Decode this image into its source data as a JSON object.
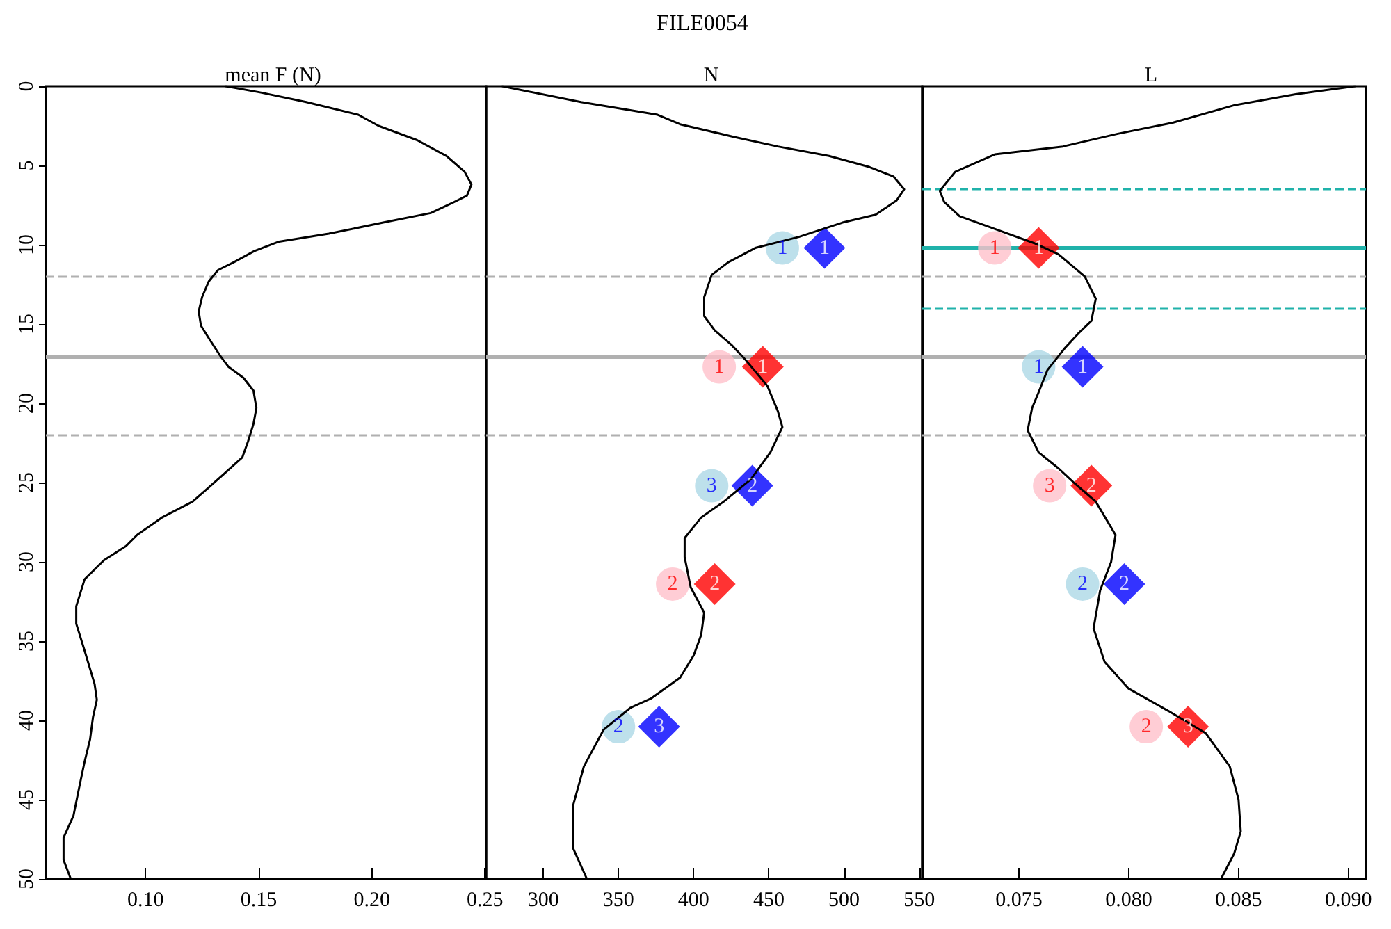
{
  "chart_data": [
    {
      "type": "line",
      "subtitle": "mean F (N)",
      "xlim": [
        0.056,
        0.2505
      ],
      "xticks": [
        {
          "value": 0.1,
          "label": "0.10"
        },
        0.15,
        {
          "value": 0.2,
          "label": "0.20"
        },
        0.25
      ],
      "ylim": [
        50,
        0
      ],
      "yticks": [
        0,
        5,
        10,
        15,
        20,
        25,
        30,
        35,
        40,
        45,
        50
      ],
      "grid": false,
      "ref_lines": [
        {
          "axis": "y",
          "value": 12,
          "color": "#b0b0b0",
          "line_style": "dashed"
        },
        {
          "axis": "y",
          "value": 17,
          "color": "#b0b0b0",
          "line_style": "solid"
        },
        {
          "axis": "y",
          "value": 22,
          "color": "#b0b0b0",
          "line_style": "dashed"
        }
      ],
      "series": [
        {
          "color": "#000000",
          "marker": "none",
          "x": [
            0.1355,
            0.151,
            0.171,
            0.194,
            0.203,
            0.22,
            0.233,
            0.241,
            0.244,
            0.242,
            0.235,
            0.226,
            0.205,
            0.181,
            0.159,
            0.148,
            0.139,
            0.132,
            0.128,
            0.125,
            0.1235,
            0.1245,
            0.128,
            0.133,
            0.1367,
            0.1433,
            0.1477,
            0.149,
            0.1477,
            0.1453,
            0.1428,
            0.1343,
            0.128,
            0.1208,
            0.1073,
            0.0963,
            0.0914,
            0.0816,
            0.0731,
            0.0694,
            0.0694,
            0.0731,
            0.0775,
            0.0785,
            0.0768,
            0.0755,
            0.0731,
            0.0706,
            0.0682,
            0.0638,
            0.0638,
            0.067
          ],
          "values": [
            0,
            0.4,
            1.0,
            1.8,
            2.5,
            3.4,
            4.4,
            5.4,
            6.2,
            6.9,
            7.4,
            8.0,
            8.6,
            9.3,
            9.8,
            10.4,
            11.1,
            11.6,
            12.3,
            13.3,
            14.2,
            15.1,
            15.9,
            17.0,
            17.7,
            18.4,
            19.2,
            20.3,
            21.3,
            22.4,
            23.4,
            24.5,
            25.3,
            26.2,
            27.2,
            28.3,
            29.0,
            29.9,
            31.1,
            32.8,
            33.9,
            35.6,
            37.7,
            38.7,
            39.8,
            41.2,
            42.6,
            44.3,
            46.0,
            47.4,
            48.8,
            50
          ]
        }
      ]
    },
    {
      "type": "line",
      "title": "FILE0054",
      "subtitle": "N",
      "xlim": [
        262,
        552
      ],
      "xticks": [
        300,
        350,
        400,
        450,
        500,
        550
      ],
      "ylim": [
        50,
        0
      ],
      "yticks": [
        0,
        5,
        10,
        15,
        20,
        25,
        30,
        35,
        40,
        45,
        50
      ],
      "tick_labels": "x",
      "grid": false,
      "ref_lines": [
        {
          "axis": "y",
          "value": 12,
          "color": "#b0b0b0",
          "line_style": "dashed"
        },
        {
          "axis": "y",
          "value": 17,
          "color": "#b0b0b0",
          "line_style": "solid"
        },
        {
          "axis": "y",
          "value": 22,
          "color": "#b0b0b0",
          "line_style": "dashed"
        }
      ],
      "series": [
        {
          "color": "#000000",
          "marker": "none",
          "x": [
            272.8,
            325,
            376,
            391,
            427,
            456,
            490,
            517,
            533,
            540,
            535,
            521,
            499,
            470,
            441,
            423,
            412,
            407,
            407,
            414,
            425,
            434,
            449,
            456,
            459,
            451,
            438,
            420,
            405,
            394,
            394,
            398,
            407,
            405,
            400,
            391,
            372,
            358,
            340,
            327,
            320,
            320,
            329
          ],
          "values": [
            0,
            1.0,
            1.8,
            2.4,
            3.2,
            3.8,
            4.4,
            5.1,
            5.7,
            6.5,
            7.2,
            8.1,
            8.6,
            9.5,
            10.2,
            11.1,
            11.9,
            13.3,
            14.5,
            15.4,
            16.3,
            17.2,
            18.9,
            20.5,
            21.5,
            23.1,
            24.8,
            26.2,
            27.2,
            28.5,
            29.7,
            31.6,
            33.2,
            34.6,
            35.9,
            37.3,
            38.6,
            39.2,
            40.6,
            42.9,
            45.3,
            48.1,
            50
          ]
        },
        {
          "type": "scatter",
          "color": "#add8e6",
          "marker": "circle",
          "x": [
            459,
            412,
            350
          ],
          "values": [
            10.2,
            25.2,
            40.4
          ]
        },
        {
          "type": "scatter",
          "color": "#0000ff",
          "marker": "diamond",
          "x": [
            487,
            439,
            377
          ],
          "values": [
            10.2,
            25.2,
            40.4
          ]
        },
        {
          "type": "scatter",
          "color": "#ffc0cb",
          "marker": "circle",
          "x": [
            417,
            386
          ],
          "values": [
            17.7,
            31.4
          ]
        },
        {
          "type": "scatter",
          "color": "#ff0000",
          "marker": "diamond",
          "x": [
            446,
            414
          ],
          "values": [
            17.7,
            31.4
          ]
        }
      ],
      "annotations": [
        {
          "text": "1",
          "x": 459,
          "y": 10.2
        },
        {
          "text": "3",
          "x": 412,
          "y": 25.2
        },
        {
          "text": "2",
          "x": 350,
          "y": 40.4
        },
        {
          "text": "1",
          "x": 487,
          "y": 10.2
        },
        {
          "text": "2",
          "x": 439,
          "y": 25.2
        },
        {
          "text": "3",
          "x": 377,
          "y": 40.4
        },
        {
          "text": "1",
          "x": 417,
          "y": 17.7
        },
        {
          "text": "2",
          "x": 386,
          "y": 31.4
        },
        {
          "text": "1",
          "x": 446,
          "y": 17.7
        },
        {
          "text": "2",
          "x": 414,
          "y": 31.4
        }
      ]
    },
    {
      "type": "line",
      "subtitle": "L",
      "xlim": [
        0.0706,
        0.0908
      ],
      "xticks": [
        0.075,
        {
          "value": 0.08,
          "label": "0.080"
        },
        0.085,
        {
          "value": 0.09,
          "label": "0.090"
        }
      ],
      "ylim": [
        50,
        0
      ],
      "yticks": [
        0,
        5,
        10,
        15,
        20,
        25,
        30,
        35,
        40,
        45,
        50
      ],
      "tick_labels": "x",
      "grid": false,
      "ref_lines": [
        {
          "axis": "y",
          "value": 12,
          "color": "#b0b0b0",
          "line_style": "dashed"
        },
        {
          "axis": "y",
          "value": 17,
          "color": "#b0b0b0",
          "line_style": "solid"
        },
        {
          "axis": "y",
          "value": 22,
          "color": "#b0b0b0",
          "line_style": "dashed"
        },
        {
          "axis": "y",
          "value": 6.5,
          "color": "#20b2aa",
          "line_style": "dashed"
        },
        {
          "axis": "y",
          "value": 10.2,
          "color": "#20b2aa",
          "line_style": "solid"
        },
        {
          "axis": "y",
          "value": 14,
          "color": "#20b2aa",
          "line_style": "dashed"
        }
      ],
      "series": [
        {
          "color": "#000000",
          "marker": "none",
          "x": [
            0.0903,
            0.0876,
            0.0848,
            0.082,
            0.0795,
            0.077,
            0.0739,
            0.0721,
            0.0714,
            0.0716,
            0.0723,
            0.0737,
            0.0757,
            0.0768,
            0.078,
            0.0785,
            0.0783,
            0.0777,
            0.0771,
            0.0763,
            0.0759,
            0.0756,
            0.0754,
            0.0759,
            0.0768,
            0.0775,
            0.0785,
            0.0794,
            0.0792,
            0.0787,
            0.0784,
            0.0789,
            0.08,
            0.0818,
            0.0835,
            0.0846,
            0.085,
            0.0851,
            0.0848,
            0.0842
          ],
          "values": [
            0,
            0.5,
            1.2,
            2.3,
            3.0,
            3.8,
            4.3,
            5.4,
            6.6,
            7.3,
            8.2,
            8.9,
            9.9,
            10.6,
            12.0,
            13.4,
            14.8,
            15.6,
            16.5,
            17.9,
            19.3,
            20.3,
            21.7,
            23.1,
            24.1,
            25.0,
            26.2,
            28.3,
            30.0,
            31.8,
            34.2,
            36.3,
            38.0,
            39.4,
            40.8,
            42.9,
            45.0,
            47.0,
            48.4,
            50
          ]
        },
        {
          "type": "scatter",
          "color": "#add8e6",
          "marker": "circle",
          "x": [
            0.0759,
            0.0779
          ],
          "values": [
            17.7,
            31.4
          ]
        },
        {
          "type": "scatter",
          "color": "#0000ff",
          "marker": "diamond",
          "x": [
            0.0779,
            0.0798
          ],
          "values": [
            17.7,
            31.4
          ]
        },
        {
          "type": "scatter",
          "color": "#ffc0cb",
          "marker": "circle",
          "x": [
            0.0739,
            0.0764,
            0.0808
          ],
          "values": [
            10.2,
            25.2,
            40.4
          ]
        },
        {
          "type": "scatter",
          "color": "#ff0000",
          "marker": "diamond",
          "x": [
            0.0759,
            0.0783,
            0.0827
          ],
          "values": [
            10.2,
            25.2,
            40.4
          ]
        }
      ],
      "annotations": [
        {
          "text": "1",
          "x": 0.0759,
          "y": 17.7
        },
        {
          "text": "2",
          "x": 0.0779,
          "y": 31.4
        },
        {
          "text": "1",
          "x": 0.0779,
          "y": 17.7
        },
        {
          "text": "2",
          "x": 0.0798,
          "y": 31.4
        },
        {
          "text": "1",
          "x": 0.0739,
          "y": 10.2
        },
        {
          "text": "3",
          "x": 0.0764,
          "y": 25.2
        },
        {
          "text": "2",
          "x": 0.0808,
          "y": 40.4
        },
        {
          "text": "1",
          "x": 0.0759,
          "y": 10.2
        },
        {
          "text": "2",
          "x": 0.0783,
          "y": 25.2
        },
        {
          "text": "3",
          "x": 0.0827,
          "y": 40.4
        }
      ]
    }
  ]
}
